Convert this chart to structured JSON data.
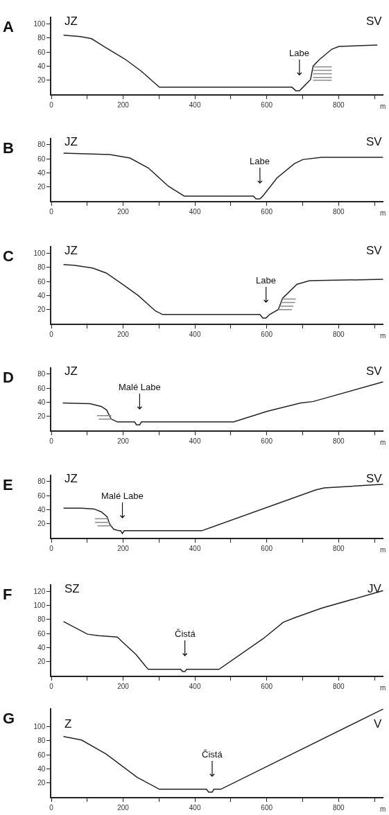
{
  "chart_data": [
    {
      "type": "line",
      "title": "A",
      "xlabel": "m",
      "annotations": [
        "JZ",
        "SV",
        {
          "text": "Labe",
          "x": 691,
          "y": 5
        }
      ],
      "xlim": [
        0,
        925
      ],
      "xticks": [
        0,
        {
          "value": 100,
          "label": null
        },
        200,
        {
          "value": 300,
          "label": null
        },
        400,
        {
          "value": 500,
          "label": null
        },
        600,
        {
          "value": 700,
          "label": null
        },
        800,
        {
          "value": 900,
          "label": null
        }
      ],
      "ylim": [
        0,
        110
      ],
      "yticks": [
        20,
        40,
        60,
        80,
        100
      ],
      "series": [
        {
          "color": "#222222",
          "x": [
            34,
            81,
            112,
            146,
            205,
            250,
            301,
            670,
            681,
            691,
            701,
            722,
            729,
            746,
            781,
            801,
            908
          ],
          "values": [
            84,
            82,
            79,
            68,
            50,
            33,
            10,
            10,
            5,
            5,
            10,
            21,
            40,
            49,
            64,
            68,
            70
          ]
        },
        {
          "color": "#888888",
          "x": [
            729,
            781
          ],
          "values": [
            39,
            39
          ]
        },
        {
          "color": "#888888",
          "x": [
            729,
            781
          ],
          "values": [
            34,
            34
          ]
        },
        {
          "color": "#888888",
          "x": [
            729,
            781
          ],
          "values": [
            29,
            29
          ]
        },
        {
          "color": "#888888",
          "x": [
            729,
            781
          ],
          "values": [
            24,
            24
          ]
        },
        {
          "color": "#888888",
          "x": [
            729,
            781
          ],
          "values": [
            20,
            20
          ]
        }
      ]
    },
    {
      "type": "line",
      "title": "B",
      "xlabel": "m",
      "annotations": [
        "JZ",
        "SV",
        {
          "text": "Labe",
          "x": 581,
          "y": 3
        }
      ],
      "xlim": [
        0,
        925
      ],
      "xticks": [
        0,
        {
          "value": 100,
          "label": null
        },
        200,
        {
          "value": 300,
          "label": null
        },
        400,
        {
          "value": 500,
          "label": null
        },
        600,
        {
          "value": 700,
          "label": null
        },
        800,
        {
          "value": 900,
          "label": null
        }
      ],
      "ylim": [
        0,
        90
      ],
      "yticks": [
        20,
        40,
        60,
        80
      ],
      "series": [
        {
          "color": "#222222",
          "x": [
            34,
            163,
            219,
            270,
            326,
            370,
            563,
            570,
            581,
            589,
            629,
            677,
            701,
            753,
            924
          ],
          "values": [
            68,
            66,
            61,
            47,
            21,
            7,
            7,
            3,
            3,
            7,
            33,
            53,
            59,
            62,
            62
          ]
        }
      ]
    },
    {
      "type": "line",
      "title": "C",
      "xlabel": "m",
      "annotations": [
        "JZ",
        "SV",
        {
          "text": "Labe",
          "x": 598,
          "y": 8
        }
      ],
      "xlim": [
        0,
        925
      ],
      "xticks": [
        0,
        {
          "value": 100,
          "label": null
        },
        200,
        {
          "value": 300,
          "label": null
        },
        400,
        {
          "value": 500,
          "label": null
        },
        600,
        {
          "value": 700,
          "label": null
        },
        800,
        {
          "value": 900,
          "label": null
        }
      ],
      "ylim": [
        0,
        110
      ],
      "yticks": [
        20,
        40,
        60,
        80,
        100
      ],
      "series": [
        {
          "color": "#222222",
          "x": [
            34,
            63,
            115,
            153,
            201,
            242,
            290,
            310,
            581,
            589,
            598,
            608,
            632,
            644,
            684,
            719,
            924
          ],
          "values": [
            84,
            83,
            79,
            72,
            55,
            40,
            18,
            13,
            13,
            8,
            8,
            13,
            20,
            36,
            56,
            61,
            63
          ]
        },
        {
          "color": "#888888",
          "x": [
            643,
            681
          ],
          "values": [
            35,
            35
          ]
        },
        {
          "color": "#888888",
          "x": [
            639,
            679
          ],
          "values": [
            30,
            30
          ]
        },
        {
          "color": "#888888",
          "x": [
            635,
            674
          ],
          "values": [
            25,
            25
          ]
        },
        {
          "color": "#888888",
          "x": [
            632,
            670
          ],
          "values": [
            20,
            20
          ]
        }
      ]
    },
    {
      "type": "line",
      "title": "D",
      "xlabel": "m",
      "annotations": [
        "JZ",
        "SV",
        {
          "text": "Malé Labe",
          "x": 246,
          "y": 8
        }
      ],
      "xlim": [
        0,
        925
      ],
      "xticks": [
        0,
        {
          "value": 100,
          "label": null
        },
        200,
        {
          "value": 300,
          "label": null
        },
        400,
        {
          "value": 500,
          "label": null
        },
        600,
        {
          "value": 700,
          "label": null
        },
        800,
        {
          "value": 900,
          "label": null
        }
      ],
      "ylim": [
        0,
        90
      ],
      "yticks": [
        20,
        40,
        60,
        80
      ],
      "series": [
        {
          "color": "#222222",
          "x": [
            32,
            108,
            139,
            154,
            167,
            184,
            232,
            237,
            246,
            251,
            508,
            601,
            694,
            729,
            924
          ],
          "values": [
            39,
            38,
            34,
            29,
            16,
            12,
            12,
            8,
            8,
            12,
            12,
            27,
            39,
            41,
            69
          ]
        },
        {
          "color": "#888888",
          "x": [
            127,
            167
          ],
          "values": [
            21,
            21
          ]
        },
        {
          "color": "#888888",
          "x": [
            132,
            170
          ],
          "values": [
            16,
            16
          ]
        }
      ]
    },
    {
      "type": "line",
      "title": "E",
      "xlabel": "m",
      "annotations": [
        "JZ",
        "SV",
        {
          "text": "Malé Labe",
          "x": 198,
          "y": 6
        }
      ],
      "xlim": [
        0,
        925
      ],
      "xticks": [
        0,
        {
          "value": 100,
          "label": null
        },
        200,
        {
          "value": 300,
          "label": null
        },
        400,
        {
          "value": 500,
          "label": null
        },
        600,
        {
          "value": 700,
          "label": null
        },
        800,
        {
          "value": 900,
          "label": null
        }
      ],
      "ylim": [
        0,
        90
      ],
      "yticks": [
        20,
        40,
        60,
        80
      ],
      "series": [
        {
          "color": "#222222",
          "x": [
            34,
            84,
            119,
            139,
            155,
            163,
            174,
            188,
            193,
            198,
            203,
            419,
            736,
            760,
            924
          ],
          "values": [
            42,
            42,
            41,
            37,
            30,
            19,
            12,
            10,
            10,
            6,
            10,
            10,
            68,
            71,
            76
          ]
        },
        {
          "color": "#888888",
          "x": [
            122,
            160
          ],
          "values": [
            27,
            27
          ]
        },
        {
          "color": "#888888",
          "x": [
            122,
            163
          ],
          "values": [
            22,
            22
          ]
        },
        {
          "color": "#888888",
          "x": [
            129,
            167
          ],
          "values": [
            17,
            17
          ]
        }
      ]
    },
    {
      "type": "line",
      "title": "F",
      "xlabel": "m",
      "annotations": [
        "SZ",
        "JV",
        {
          "text": "Čistá",
          "x": 372,
          "y": 6
        }
      ],
      "xlim": [
        0,
        925
      ],
      "xticks": [
        0,
        {
          "value": 100,
          "label": null
        },
        200,
        {
          "value": 300,
          "label": null
        },
        400,
        {
          "value": 500,
          "label": null
        },
        600,
        {
          "value": 700,
          "label": null
        },
        800,
        {
          "value": 900,
          "label": null
        }
      ],
      "ylim": [
        0,
        130
      ],
      "yticks": [
        20,
        40,
        60,
        80,
        100,
        120
      ],
      "series": [
        {
          "color": "#222222",
          "x": [
            34,
            101,
            132,
            184,
            198,
            236,
            260,
            270,
            360,
            366,
            372,
            377,
            467,
            591,
            646,
            681,
            753,
            924
          ],
          "values": [
            77,
            59,
            57,
            55,
            48,
            30,
            15,
            9,
            9,
            6,
            6,
            9,
            9,
            53,
            76,
            83,
            96,
            121
          ]
        }
      ]
    },
    {
      "type": "line",
      "title": "G",
      "xlabel": "m",
      "annotations": [
        "Z",
        "V",
        {
          "text": "Čistá",
          "x": 448,
          "y": 7
        }
      ],
      "xlim": [
        0,
        925
      ],
      "xticks": [
        0,
        {
          "value": 100,
          "label": null
        },
        200,
        {
          "value": 300,
          "label": null
        },
        400,
        {
          "value": 500,
          "label": null
        },
        600,
        {
          "value": 700,
          "label": null
        },
        800,
        {
          "value": 900,
          "label": null
        }
      ],
      "ylim": [
        0,
        126
      ],
      "yticks": [
        20,
        40,
        60,
        80,
        100
      ],
      "series": [
        {
          "color": "#222222",
          "x": [
            34,
            84,
            153,
            239,
            301,
            432,
            438,
            448,
            453,
            472,
            924
          ],
          "values": [
            86,
            81,
            61,
            28,
            11,
            11,
            7,
            7,
            11,
            11,
            125
          ]
        }
      ]
    }
  ]
}
